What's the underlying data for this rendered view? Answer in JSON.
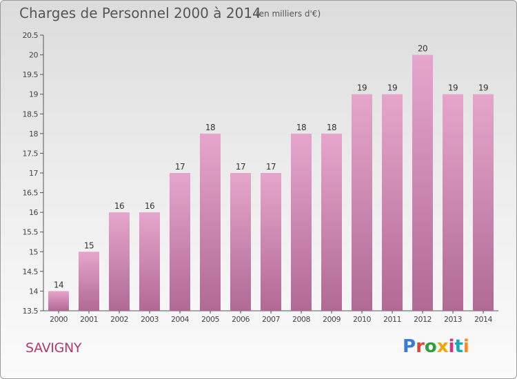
{
  "title": "Charges de Personnel 2000 à 2014",
  "subtitle": "(en milliers d'€)",
  "place": "SAVIGNY",
  "logo": {
    "text": "Proxiti",
    "letter_colors": [
      "#3a7bd5",
      "#e8432e",
      "#2e9f3e",
      "#f0a500",
      "#d63384",
      "#1aa6b7",
      "#f28c28"
    ]
  },
  "colors": {
    "bar_top": "#e6a6cc",
    "bar_bottom": "#b06a94",
    "axis": "#555555"
  },
  "chart_data": {
    "type": "bar",
    "categories": [
      "2000",
      "2001",
      "2002",
      "2003",
      "2004",
      "2005",
      "2006",
      "2007",
      "2008",
      "2009",
      "2010",
      "2011",
      "2012",
      "2013",
      "2014"
    ],
    "values": [
      14,
      15,
      16,
      16,
      17,
      18,
      17,
      17,
      18,
      18,
      19,
      19,
      20,
      19,
      19
    ],
    "labels": [
      "14",
      "15",
      "16",
      "16",
      "17",
      "18",
      "17",
      "17",
      "18",
      "18",
      "19",
      "19",
      "20",
      "19",
      "19"
    ],
    "ylim": [
      13.5,
      20.5
    ],
    "yticks": [
      13.5,
      14,
      14.5,
      15,
      15.5,
      16,
      16.5,
      17,
      17.5,
      18,
      18.5,
      19,
      19.5,
      20,
      20.5
    ],
    "ytick_labels": [
      "13.5",
      "14",
      "14.5",
      "15",
      "15.5",
      "16",
      "16.5",
      "17",
      "17.5",
      "18",
      "18.5",
      "19",
      "19.5",
      "20",
      "20.5"
    ],
    "grid": false,
    "xlabel": "",
    "ylabel": ""
  }
}
